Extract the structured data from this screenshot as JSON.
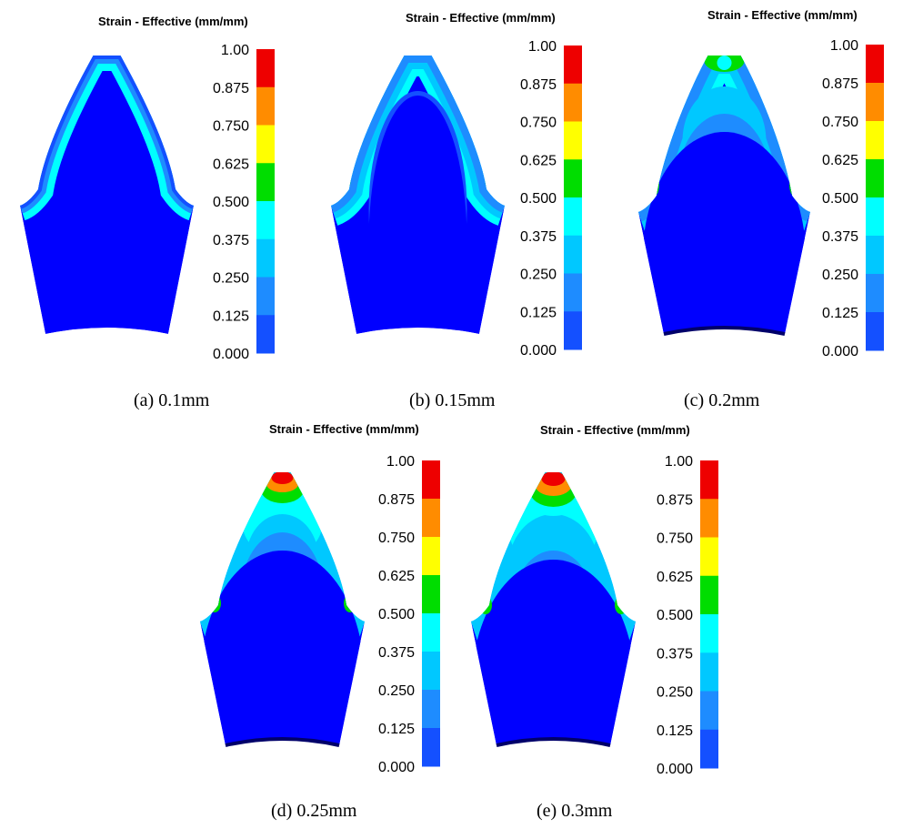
{
  "scale": {
    "title": "Strain - Effective (mm/mm)",
    "ticks": [
      "1.00",
      "0.875",
      "0.750",
      "0.625",
      "0.500",
      "0.375",
      "0.250",
      "0.125",
      "0.000"
    ],
    "band_colors": [
      "#ee0000",
      "#ff8c00",
      "#ffff00",
      "#00dd00",
      "#00ffff",
      "#00c8ff",
      "#1e8cff",
      "#1450ff",
      "#0000ff"
    ]
  },
  "panels": [
    {
      "caption": "(a) 0.1mm"
    },
    {
      "caption": "(b) 0.15mm"
    },
    {
      "caption": "(c) 0.2mm"
    },
    {
      "caption": "(d) 0.25mm"
    },
    {
      "caption": "(e) 0.3mm"
    }
  ]
}
